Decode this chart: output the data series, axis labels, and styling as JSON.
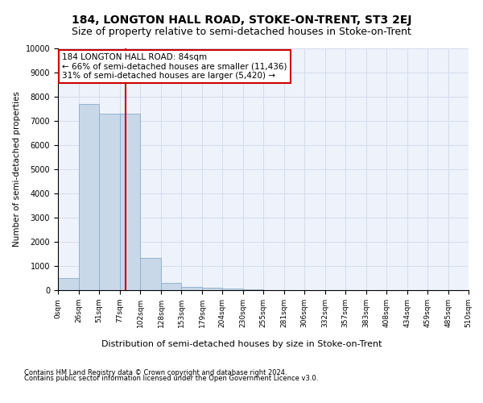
{
  "title": "184, LONGTON HALL ROAD, STOKE-ON-TRENT, ST3 2EJ",
  "subtitle": "Size of property relative to semi-detached houses in Stoke-on-Trent",
  "xlabel": "Distribution of semi-detached houses by size in Stoke-on-Trent",
  "ylabel": "Number of semi-detached properties",
  "footnote1": "Contains HM Land Registry data © Crown copyright and database right 2024.",
  "footnote2": "Contains public sector information licensed under the Open Government Licence v3.0.",
  "bar_color": "#c8d8e8",
  "bar_edge_color": "#8aadcc",
  "red_line_color": "#cc0000",
  "property_size": 84,
  "annotation_title": "184 LONGTON HALL ROAD: 84sqm",
  "annotation_line1": "← 66% of semi-detached houses are smaller (11,436)",
  "annotation_line2": "31% of semi-detached houses are larger (5,420) →",
  "bin_edges": [
    0,
    26,
    51,
    77,
    102,
    128,
    153,
    179,
    204,
    230,
    255,
    281,
    306,
    332,
    357,
    383,
    408,
    434,
    459,
    485,
    510
  ],
  "bar_heights": [
    500,
    7700,
    7300,
    7300,
    1350,
    300,
    150,
    100,
    75,
    30,
    10,
    5,
    3,
    2,
    1,
    1,
    0,
    0,
    0,
    0
  ],
  "ylim": [
    0,
    10000
  ],
  "yticks": [
    0,
    1000,
    2000,
    3000,
    4000,
    5000,
    6000,
    7000,
    8000,
    9000,
    10000
  ],
  "xtick_labels": [
    "0sqm",
    "26sqm",
    "51sqm",
    "77sqm",
    "102sqm",
    "128sqm",
    "153sqm",
    "179sqm",
    "204sqm",
    "230sqm",
    "255sqm",
    "281sqm",
    "306sqm",
    "332sqm",
    "357sqm",
    "383sqm",
    "408sqm",
    "434sqm",
    "459sqm",
    "485sqm",
    "510sqm"
  ],
  "grid_color": "#d4dded",
  "background_color": "#eef2fa",
  "title_fontsize": 10,
  "subtitle_fontsize": 9,
  "xlabel_fontsize": 8,
  "ylabel_fontsize": 7.5,
  "annotation_fontsize": 7.5,
  "footnote_fontsize": 6,
  "annotation_box_color": "#ffffff",
  "annotation_box_edge": "#cc0000"
}
